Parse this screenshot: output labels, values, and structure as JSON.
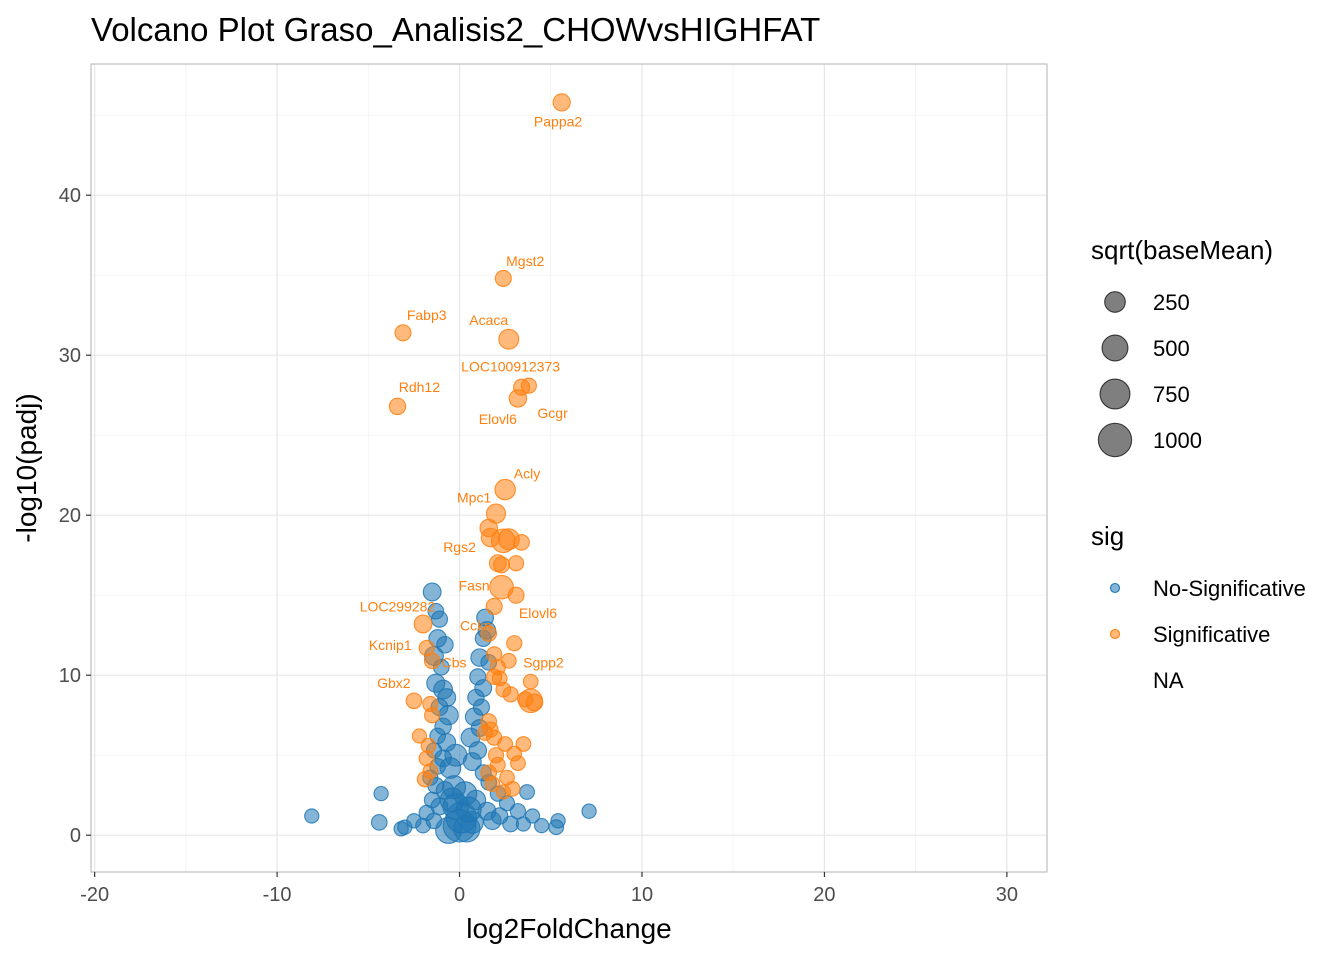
{
  "chart_data": {
    "type": "scatter",
    "title": "Volcano Plot Graso_Analisis2_CHOWvsHIGHFAT",
    "xlabel": "log2FoldChange",
    "ylabel": "-log10(padj)",
    "xlim": [
      -20.2,
      32.2
    ],
    "ylim": [
      -2.3,
      48.2
    ],
    "x_ticks": [
      -20,
      -10,
      0,
      10,
      20,
      30
    ],
    "x_tick_labels": [
      "-20",
      "-10",
      "0",
      "10",
      "20",
      "30"
    ],
    "y_ticks": [
      0,
      10,
      20,
      30,
      40
    ],
    "y_tick_labels": [
      "0",
      "10",
      "20",
      "30",
      "40"
    ],
    "grid": true,
    "legend_position": "right",
    "legends": {
      "size": {
        "title": "sqrt(baseMean)",
        "entries": [
          {
            "label": "250",
            "value": 250
          },
          {
            "label": "500",
            "value": 500
          },
          {
            "label": "750",
            "value": 750
          },
          {
            "label": "1000",
            "value": 1000
          }
        ]
      },
      "color": {
        "title": "sig",
        "entries": [
          {
            "label": "No-Significative",
            "color": "#1f77b4"
          },
          {
            "label": "Significative",
            "color": "#ff7f0e"
          },
          {
            "label": "NA",
            "color": null
          }
        ]
      }
    },
    "colors": {
      "No-Significative": "#1f77b4",
      "Significative": "#ff7f0e"
    },
    "series": [
      {
        "name": "No-Significative",
        "points": [
          [
            -8.1,
            1.2,
            60
          ],
          [
            -4.3,
            2.6,
            60
          ],
          [
            -4.4,
            0.8,
            90
          ],
          [
            -3.2,
            0.4,
            60
          ],
          [
            -3.0,
            0.5,
            60
          ],
          [
            -2.5,
            0.9,
            60
          ],
          [
            -1.5,
            15.2,
            150
          ],
          [
            -1.3,
            14.0,
            90
          ],
          [
            -1.1,
            13.5,
            100
          ],
          [
            -1.2,
            12.3,
            140
          ],
          [
            -0.8,
            11.9,
            110
          ],
          [
            -1.4,
            11.2,
            180
          ],
          [
            -1.0,
            10.5,
            90
          ],
          [
            -1.3,
            9.5,
            160
          ],
          [
            -0.9,
            9.1,
            180
          ],
          [
            -0.7,
            8.6,
            150
          ],
          [
            -1.1,
            8.0,
            120
          ],
          [
            -0.6,
            7.5,
            200
          ],
          [
            -0.9,
            6.8,
            110
          ],
          [
            -1.2,
            6.2,
            90
          ],
          [
            -0.7,
            5.8,
            150
          ],
          [
            -1.4,
            5.3,
            80
          ],
          [
            -0.9,
            4.8,
            120
          ],
          [
            -1.2,
            4.3,
            90
          ],
          [
            -1.6,
            3.6,
            80
          ],
          [
            -1.3,
            3.1,
            100
          ],
          [
            -0.8,
            2.8,
            140
          ],
          [
            -1.5,
            2.2,
            90
          ],
          [
            -1.1,
            1.8,
            120
          ],
          [
            -1.8,
            1.4,
            80
          ],
          [
            -1.4,
            0.9,
            90
          ],
          [
            -2.0,
            0.6,
            70
          ],
          [
            -0.5,
            4.2,
            250
          ],
          [
            -0.3,
            3.0,
            350
          ],
          [
            -0.2,
            1.8,
            500
          ],
          [
            0.0,
            0.6,
            950
          ],
          [
            0.1,
            1.1,
            800
          ],
          [
            -0.4,
            2.2,
            400
          ],
          [
            0.3,
            2.6,
            380
          ],
          [
            0.5,
            1.6,
            450
          ],
          [
            0.7,
            0.8,
            300
          ],
          [
            0.9,
            2.2,
            200
          ],
          [
            1.4,
            13.6,
            120
          ],
          [
            1.5,
            12.8,
            140
          ],
          [
            1.3,
            12.3,
            100
          ],
          [
            1.1,
            11.1,
            140
          ],
          [
            1.6,
            10.8,
            90
          ],
          [
            1.0,
            9.9,
            100
          ],
          [
            1.3,
            9.2,
            120
          ],
          [
            0.9,
            8.6,
            110
          ],
          [
            1.2,
            8.0,
            100
          ],
          [
            0.8,
            7.4,
            140
          ],
          [
            1.1,
            6.7,
            120
          ],
          [
            0.6,
            6.1,
            180
          ],
          [
            1.0,
            5.3,
            140
          ],
          [
            0.7,
            4.6,
            150
          ],
          [
            1.3,
            3.9,
            100
          ],
          [
            1.6,
            3.3,
            90
          ],
          [
            2.1,
            2.6,
            80
          ],
          [
            2.6,
            2.0,
            80
          ],
          [
            3.2,
            1.5,
            80
          ],
          [
            3.7,
            2.7,
            70
          ],
          [
            4.0,
            1.2,
            60
          ],
          [
            3.5,
            0.7,
            60
          ],
          [
            4.5,
            0.6,
            60
          ],
          [
            5.3,
            0.5,
            70
          ],
          [
            5.4,
            0.9,
            60
          ],
          [
            7.1,
            1.5,
            60
          ],
          [
            2.2,
            1.2,
            110
          ],
          [
            1.8,
            0.9,
            140
          ],
          [
            2.8,
            0.7,
            90
          ],
          [
            1.5,
            1.5,
            150
          ],
          [
            -0.6,
            0.3,
            500
          ],
          [
            0.4,
            0.4,
            520
          ],
          [
            -0.2,
            5.0,
            300
          ]
        ]
      },
      {
        "name": "Significative",
        "points": [
          [
            5.6,
            45.8,
            130
          ],
          [
            2.4,
            34.8,
            100
          ],
          [
            -3.1,
            31.4,
            100
          ],
          [
            2.7,
            31.0,
            220
          ],
          [
            3.4,
            28.0,
            100
          ],
          [
            3.8,
            28.1,
            80
          ],
          [
            3.2,
            27.3,
            140
          ],
          [
            -3.4,
            26.8,
            110
          ],
          [
            2.5,
            21.6,
            240
          ],
          [
            2.0,
            20.1,
            190
          ],
          [
            1.6,
            19.2,
            140
          ],
          [
            1.7,
            18.6,
            170
          ],
          [
            2.4,
            18.4,
            380
          ],
          [
            2.7,
            18.5,
            260
          ],
          [
            3.4,
            18.3,
            90
          ],
          [
            2.1,
            17.0,
            120
          ],
          [
            2.3,
            16.9,
            100
          ],
          [
            3.1,
            17.0,
            80
          ],
          [
            2.3,
            15.5,
            380
          ],
          [
            3.1,
            15.0,
            100
          ],
          [
            1.9,
            14.3,
            100
          ],
          [
            -2.0,
            13.2,
            150
          ],
          [
            1.6,
            12.6,
            90
          ],
          [
            -1.8,
            11.7,
            80
          ],
          [
            3.0,
            12.0,
            80
          ],
          [
            -1.5,
            10.9,
            90
          ],
          [
            1.9,
            11.3,
            80
          ],
          [
            2.1,
            10.5,
            80
          ],
          [
            2.7,
            10.9,
            70
          ],
          [
            1.9,
            9.9,
            80
          ],
          [
            2.2,
            9.8,
            70
          ],
          [
            3.9,
            9.6,
            70
          ],
          [
            2.4,
            9.1,
            70
          ],
          [
            -2.5,
            8.4,
            90
          ],
          [
            -1.6,
            8.2,
            80
          ],
          [
            2.8,
            8.8,
            80
          ],
          [
            3.9,
            8.4,
            380
          ],
          [
            4.1,
            8.3,
            120
          ],
          [
            3.6,
            8.5,
            80
          ],
          [
            1.6,
            7.1,
            90
          ],
          [
            1.7,
            6.6,
            80
          ],
          [
            1.9,
            6.1,
            80
          ],
          [
            2.5,
            5.7,
            70
          ],
          [
            3.5,
            5.7,
            70
          ],
          [
            2.0,
            5.0,
            80
          ],
          [
            3.0,
            5.1,
            70
          ],
          [
            2.1,
            4.4,
            70
          ],
          [
            3.2,
            4.5,
            70
          ],
          [
            1.6,
            3.9,
            90
          ],
          [
            2.6,
            3.6,
            70
          ],
          [
            -1.8,
            4.8,
            80
          ],
          [
            -1.6,
            4.0,
            70
          ],
          [
            -1.9,
            3.5,
            80
          ],
          [
            -1.7,
            5.6,
            70
          ],
          [
            -1.5,
            7.5,
            80
          ],
          [
            1.8,
            3.2,
            70
          ],
          [
            2.9,
            2.9,
            70
          ],
          [
            1.4,
            6.4,
            80
          ],
          [
            2.4,
            2.7,
            60
          ],
          [
            -2.2,
            6.2,
            60
          ]
        ]
      }
    ],
    "annotations": [
      {
        "text": "Pappa2",
        "x": 5.4,
        "y": 44.6
      },
      {
        "text": "Mgst2",
        "x": 3.6,
        "y": 35.9
      },
      {
        "text": "Fabp3",
        "x": -1.8,
        "y": 32.5
      },
      {
        "text": "Acaca",
        "x": 1.6,
        "y": 32.2
      },
      {
        "text": "LOC100912373",
        "x": 2.8,
        "y": 29.3
      },
      {
        "text": "Rdh12",
        "x": -2.2,
        "y": 28.0
      },
      {
        "text": "Gcgr",
        "x": 5.1,
        "y": 26.4
      },
      {
        "text": "Elovl6",
        "x": 2.1,
        "y": 26.0
      },
      {
        "text": "Acly",
        "x": 3.7,
        "y": 22.6
      },
      {
        "text": "Mpc1",
        "x": 0.8,
        "y": 21.1
      },
      {
        "text": "Rgs2",
        "x": 0.0,
        "y": 18.0
      },
      {
        "text": "Fasn",
        "x": 0.8,
        "y": 15.6
      },
      {
        "text": "LOC299282",
        "x": -3.4,
        "y": 14.3
      },
      {
        "text": "Elovl6",
        "x": 4.3,
        "y": 13.9
      },
      {
        "text": "Cckn",
        "x": 0.9,
        "y": 13.1
      },
      {
        "text": "Kcnip1",
        "x": -3.8,
        "y": 11.9
      },
      {
        "text": "Cbs",
        "x": -0.3,
        "y": 10.8
      },
      {
        "text": "Sgpp2",
        "x": 4.6,
        "y": 10.8
      },
      {
        "text": "Gbx2",
        "x": -3.6,
        "y": 9.5
      }
    ]
  }
}
